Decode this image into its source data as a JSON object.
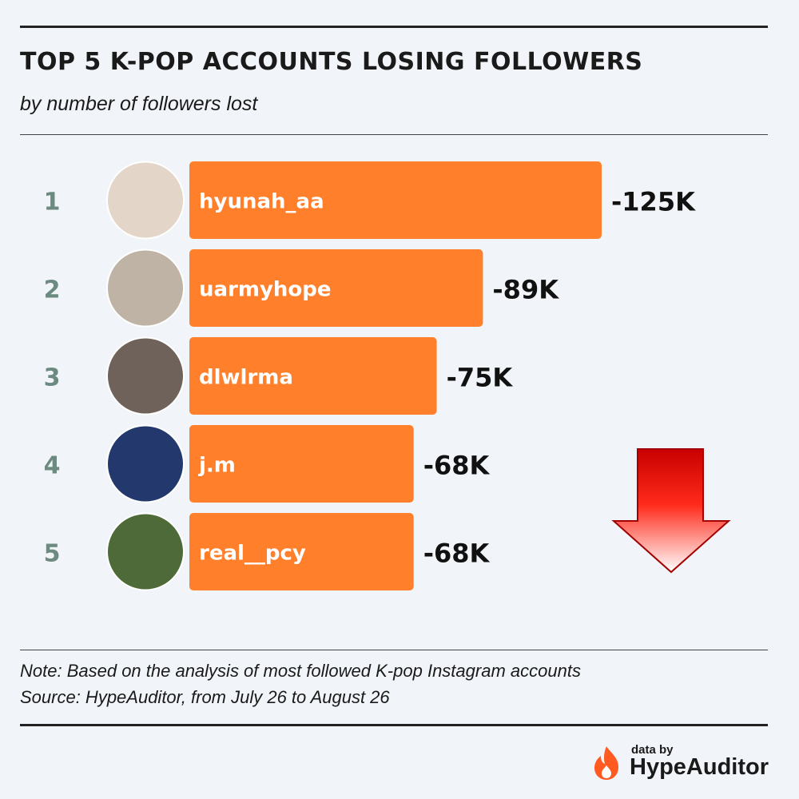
{
  "title": "TOP 5 K-POP ACCOUNTS LOSING FOLLOWERS",
  "subtitle": "by number of followers lost",
  "chart_data": {
    "type": "bar",
    "orientation": "horizontal",
    "categories": [
      "hyunah_aa",
      "uarmyhope",
      "dlwlrma",
      "j.m",
      "real__pcy"
    ],
    "ranks": [
      "1",
      "2",
      "3",
      "4",
      "5"
    ],
    "values": [
      -125,
      -89,
      -75,
      -68,
      -68
    ],
    "value_labels": [
      "-125K",
      "-89K",
      "-75K",
      "-68K",
      "-68K"
    ],
    "unit": "K",
    "bar_color": "#ff7f2a",
    "xlim": [
      0,
      125
    ]
  },
  "avatars": [
    {
      "account": "hyunah_aa",
      "color": "#e3d6c8"
    },
    {
      "account": "uarmyhope",
      "color": "#bfb3a6"
    },
    {
      "account": "dlwlrma",
      "color": "#6e625b"
    },
    {
      "account": "j.m",
      "color": "#23396d"
    },
    {
      "account": "real__pcy",
      "color": "#4e6a38"
    }
  ],
  "note": {
    "line1": "Note: Based on the analysis of most followed K-pop Instagram accounts",
    "line2": "Source: HypeAuditor, from July 26 to August 26"
  },
  "branding": {
    "data_by": "data by",
    "name": "HypeAuditor",
    "accent": "#ff5a1f"
  },
  "colors": {
    "background": "#f1f4f8",
    "rank_text": "#6d8a80",
    "arrow_red": "#d40000"
  }
}
